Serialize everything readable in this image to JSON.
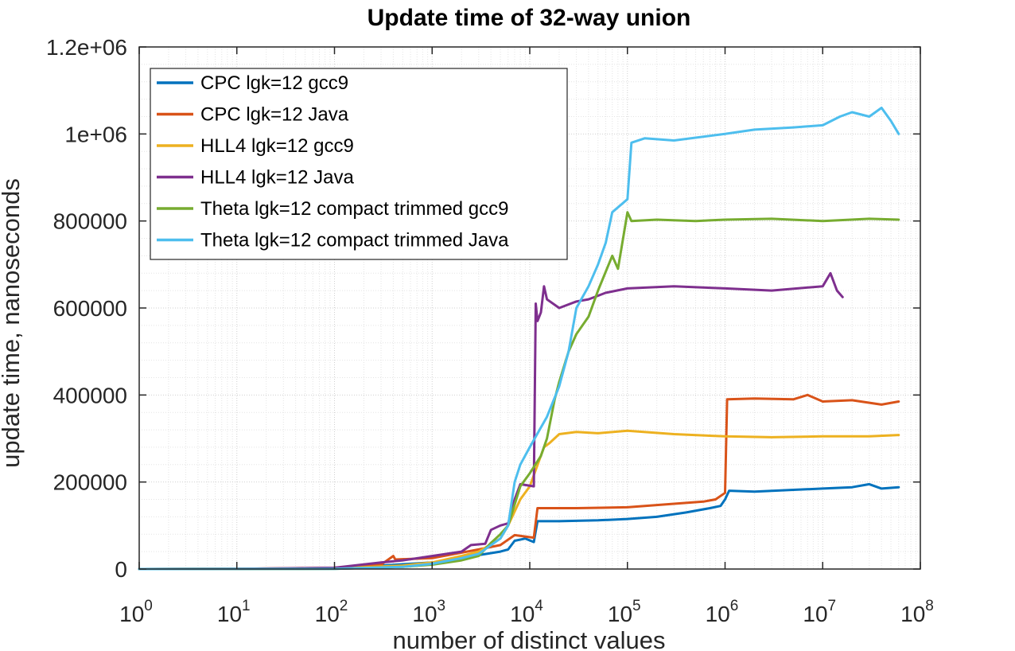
{
  "chart_data": {
    "type": "line",
    "title": "Update time of 32-way union",
    "xlabel": "number of distinct values",
    "ylabel": "update time, nanoseconds",
    "xscale": "log",
    "xlim": [
      1,
      100000000
    ],
    "ylim": [
      0,
      1200000
    ],
    "x_ticks": [
      {
        "base": "10",
        "exp": "0"
      },
      {
        "base": "10",
        "exp": "1"
      },
      {
        "base": "10",
        "exp": "2"
      },
      {
        "base": "10",
        "exp": "3"
      },
      {
        "base": "10",
        "exp": "4"
      },
      {
        "base": "10",
        "exp": "5"
      },
      {
        "base": "10",
        "exp": "6"
      },
      {
        "base": "10",
        "exp": "7"
      },
      {
        "base": "10",
        "exp": "8"
      }
    ],
    "y_ticks": [
      "0",
      "200000",
      "400000",
      "600000",
      "800000",
      "1e+06",
      "1.2e+06"
    ],
    "grid": "major and minor",
    "legend_position": "top-left",
    "series": [
      {
        "name": "CPC lgk=12 gcc9",
        "color": "#0072BD",
        "points": [
          [
            1,
            0
          ],
          [
            10,
            200
          ],
          [
            100,
            2000
          ],
          [
            300,
            8000
          ],
          [
            1000,
            15000
          ],
          [
            2000,
            25000
          ],
          [
            3000,
            32000
          ],
          [
            5000,
            40000
          ],
          [
            6000,
            45000
          ],
          [
            7000,
            65000
          ],
          [
            9000,
            70000
          ],
          [
            11000,
            62000
          ],
          [
            12000,
            110000
          ],
          [
            20000,
            110000
          ],
          [
            50000,
            112000
          ],
          [
            100000,
            115000
          ],
          [
            200000,
            120000
          ],
          [
            400000,
            130000
          ],
          [
            700000,
            140000
          ],
          [
            900000,
            145000
          ],
          [
            1000000,
            160000
          ],
          [
            1100000,
            180000
          ],
          [
            2000000,
            178000
          ],
          [
            5000000,
            182000
          ],
          [
            10000000,
            185000
          ],
          [
            20000000,
            188000
          ],
          [
            30000000,
            195000
          ],
          [
            40000000,
            185000
          ],
          [
            60000000,
            188000
          ]
        ]
      },
      {
        "name": "CPC lgk=12 Java",
        "color": "#D95319",
        "points": [
          [
            1,
            0
          ],
          [
            10,
            500
          ],
          [
            100,
            3000
          ],
          [
            300,
            10000
          ],
          [
            400,
            30000
          ],
          [
            420,
            22000
          ],
          [
            1000,
            25000
          ],
          [
            3000,
            45000
          ],
          [
            5000,
            55000
          ],
          [
            7000,
            78000
          ],
          [
            11000,
            72000
          ],
          [
            12000,
            140000
          ],
          [
            30000,
            140000
          ],
          [
            100000,
            142000
          ],
          [
            300000,
            150000
          ],
          [
            600000,
            155000
          ],
          [
            800000,
            160000
          ],
          [
            1000000,
            175000
          ],
          [
            1050000,
            390000
          ],
          [
            2000000,
            392000
          ],
          [
            5000000,
            390000
          ],
          [
            7000000,
            400000
          ],
          [
            10000000,
            385000
          ],
          [
            20000000,
            388000
          ],
          [
            40000000,
            378000
          ],
          [
            60000000,
            385000
          ]
        ]
      },
      {
        "name": "HLL4 lgk=12 gcc9",
        "color": "#EDB120",
        "points": [
          [
            1,
            0
          ],
          [
            10,
            100
          ],
          [
            100,
            1500
          ],
          [
            500,
            8000
          ],
          [
            1000,
            15000
          ],
          [
            2000,
            30000
          ],
          [
            3000,
            40000
          ],
          [
            5000,
            70000
          ],
          [
            6000,
            100000
          ],
          [
            8000,
            160000
          ],
          [
            10000,
            190000
          ],
          [
            14000,
            280000
          ],
          [
            16000,
            290000
          ],
          [
            20000,
            310000
          ],
          [
            30000,
            315000
          ],
          [
            50000,
            312000
          ],
          [
            100000,
            318000
          ],
          [
            300000,
            310000
          ],
          [
            1000000,
            305000
          ],
          [
            3000000,
            303000
          ],
          [
            10000000,
            305000
          ],
          [
            30000000,
            305000
          ],
          [
            60000000,
            308000
          ]
        ]
      },
      {
        "name": "HLL4 lgk=12 Java",
        "color": "#7E2F8E",
        "points": [
          [
            1,
            0
          ],
          [
            10,
            300
          ],
          [
            100,
            3000
          ],
          [
            300,
            15000
          ],
          [
            500,
            20000
          ],
          [
            1000,
            30000
          ],
          [
            2000,
            40000
          ],
          [
            2500,
            55000
          ],
          [
            3500,
            58000
          ],
          [
            4000,
            90000
          ],
          [
            5000,
            100000
          ],
          [
            6000,
            105000
          ],
          [
            7000,
            160000
          ],
          [
            8000,
            195000
          ],
          [
            11000,
            190000
          ],
          [
            11500,
            610000
          ],
          [
            12000,
            570000
          ],
          [
            13000,
            590000
          ],
          [
            14000,
            650000
          ],
          [
            15000,
            620000
          ],
          [
            20000,
            600000
          ],
          [
            30000,
            615000
          ],
          [
            40000,
            620000
          ],
          [
            60000,
            635000
          ],
          [
            100000,
            645000
          ],
          [
            300000,
            650000
          ],
          [
            1000000,
            645000
          ],
          [
            3000000,
            640000
          ],
          [
            10000000,
            650000
          ],
          [
            12000000,
            680000
          ],
          [
            14000000,
            640000
          ],
          [
            16000000,
            625000
          ]
        ]
      },
      {
        "name": "Theta lgk=12 compact trimmed gcc9",
        "color": "#77AC30",
        "points": [
          [
            1,
            0
          ],
          [
            100,
            300
          ],
          [
            500,
            5000
          ],
          [
            1000,
            10000
          ],
          [
            2000,
            20000
          ],
          [
            3000,
            30000
          ],
          [
            4000,
            60000
          ],
          [
            5000,
            80000
          ],
          [
            6000,
            100000
          ],
          [
            8000,
            190000
          ],
          [
            10000,
            220000
          ],
          [
            13000,
            260000
          ],
          [
            15000,
            300000
          ],
          [
            18000,
            390000
          ],
          [
            20000,
            430000
          ],
          [
            25000,
            500000
          ],
          [
            30000,
            540000
          ],
          [
            40000,
            580000
          ],
          [
            50000,
            640000
          ],
          [
            70000,
            720000
          ],
          [
            80000,
            690000
          ],
          [
            100000,
            820000
          ],
          [
            110000,
            800000
          ],
          [
            200000,
            803000
          ],
          [
            500000,
            800000
          ],
          [
            1000000,
            803000
          ],
          [
            3000000,
            805000
          ],
          [
            10000000,
            800000
          ],
          [
            30000000,
            805000
          ],
          [
            60000000,
            803000
          ]
        ]
      },
      {
        "name": "Theta lgk=12 compact trimmed Java",
        "color": "#4DBEEE",
        "points": [
          [
            1,
            0
          ],
          [
            100,
            500
          ],
          [
            500,
            5000
          ],
          [
            1000,
            12000
          ],
          [
            2000,
            25000
          ],
          [
            3000,
            35000
          ],
          [
            5000,
            70000
          ],
          [
            6000,
            100000
          ],
          [
            7000,
            200000
          ],
          [
            8000,
            240000
          ],
          [
            10000,
            280000
          ],
          [
            15000,
            350000
          ],
          [
            20000,
            420000
          ],
          [
            25000,
            500000
          ],
          [
            30000,
            600000
          ],
          [
            40000,
            650000
          ],
          [
            50000,
            700000
          ],
          [
            60000,
            750000
          ],
          [
            70000,
            820000
          ],
          [
            100000,
            850000
          ],
          [
            110000,
            980000
          ],
          [
            150000,
            990000
          ],
          [
            300000,
            985000
          ],
          [
            1000000,
            1000000
          ],
          [
            2000000,
            1010000
          ],
          [
            5000000,
            1015000
          ],
          [
            10000000,
            1020000
          ],
          [
            15000000,
            1040000
          ],
          [
            20000000,
            1050000
          ],
          [
            30000000,
            1040000
          ],
          [
            40000000,
            1060000
          ],
          [
            50000000,
            1030000
          ],
          [
            60000000,
            1000000
          ]
        ]
      }
    ]
  }
}
